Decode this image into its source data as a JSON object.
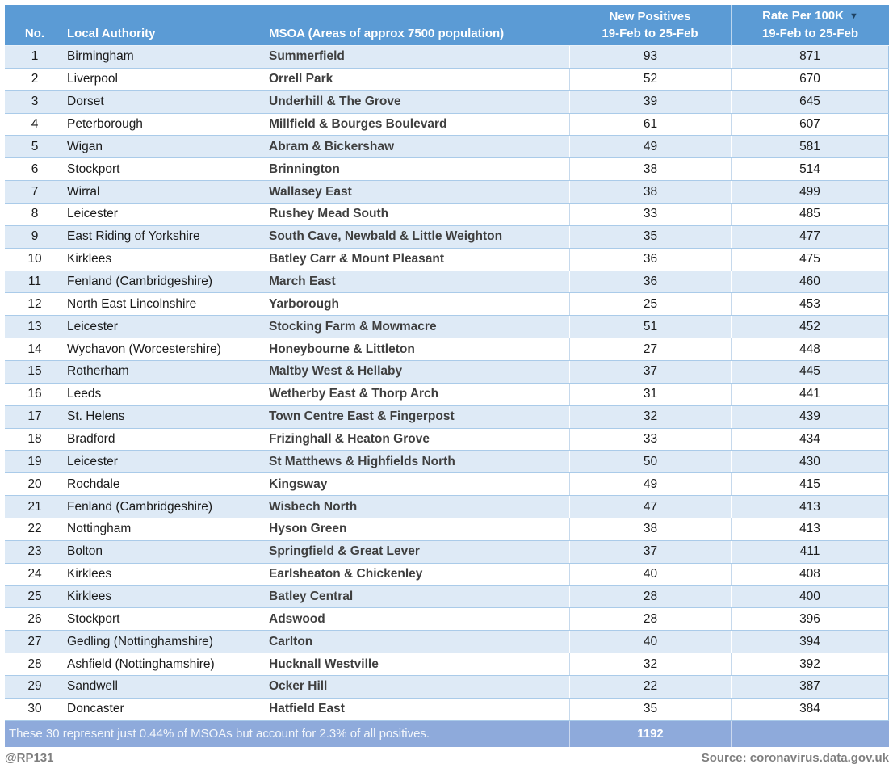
{
  "colors": {
    "header_bg": "#5b9bd5",
    "row_alt_bg": "#deeaf6",
    "row_plain_bg": "#ffffff",
    "grid_line": "#9cc2e5",
    "total_row_bg": "#8eaadb",
    "sort_arrow": "#1f4364",
    "caption_text": "#7f7f7f"
  },
  "chart_data": {
    "type": "table",
    "columns": [
      "No.",
      "Local Authority",
      "MSOA (Areas of approx 7500 population)",
      "New Positives 19-Feb to 25-Feb",
      "Rate Per 100K 19-Feb to 25-Feb"
    ],
    "header": {
      "no": "No.",
      "local_authority": "Local Authority",
      "msoa": "MSOA (Areas of approx 7500 population)",
      "positives_line1": "New Positives",
      "positives_line2": "19-Feb to 25-Feb",
      "rate_line1": "Rate Per 100K",
      "rate_line2": "19-Feb to 25-Feb",
      "sort_icon": "▼"
    },
    "rows": [
      {
        "no": "1",
        "la": "Birmingham",
        "msoa": "Summerfield",
        "positives": "93",
        "rate": "871"
      },
      {
        "no": "2",
        "la": "Liverpool",
        "msoa": "Orrell Park",
        "positives": "52",
        "rate": "670"
      },
      {
        "no": "3",
        "la": "Dorset",
        "msoa": "Underhill & The Grove",
        "positives": "39",
        "rate": "645"
      },
      {
        "no": "4",
        "la": "Peterborough",
        "msoa": "Millfield & Bourges Boulevard",
        "positives": "61",
        "rate": "607"
      },
      {
        "no": "5",
        "la": "Wigan",
        "msoa": "Abram & Bickershaw",
        "positives": "49",
        "rate": "581"
      },
      {
        "no": "6",
        "la": "Stockport",
        "msoa": "Brinnington",
        "positives": "38",
        "rate": "514"
      },
      {
        "no": "7",
        "la": "Wirral",
        "msoa": "Wallasey East",
        "positives": "38",
        "rate": "499"
      },
      {
        "no": "8",
        "la": "Leicester",
        "msoa": "Rushey Mead South",
        "positives": "33",
        "rate": "485"
      },
      {
        "no": "9",
        "la": "East Riding of Yorkshire",
        "msoa": "South Cave, Newbald & Little Weighton",
        "positives": "35",
        "rate": "477"
      },
      {
        "no": "10",
        "la": "Kirklees",
        "msoa": "Batley Carr & Mount Pleasant",
        "positives": "36",
        "rate": "475"
      },
      {
        "no": "11",
        "la": "Fenland (Cambridgeshire)",
        "msoa": "March East",
        "positives": "36",
        "rate": "460"
      },
      {
        "no": "12",
        "la": "North East Lincolnshire",
        "msoa": "Yarborough",
        "positives": "25",
        "rate": "453"
      },
      {
        "no": "13",
        "la": "Leicester",
        "msoa": "Stocking Farm & Mowmacre",
        "positives": "51",
        "rate": "452"
      },
      {
        "no": "14",
        "la": "Wychavon (Worcestershire)",
        "msoa": "Honeybourne & Littleton",
        "positives": "27",
        "rate": "448"
      },
      {
        "no": "15",
        "la": "Rotherham",
        "msoa": "Maltby West & Hellaby",
        "positives": "37",
        "rate": "445"
      },
      {
        "no": "16",
        "la": "Leeds",
        "msoa": "Wetherby East & Thorp Arch",
        "positives": "31",
        "rate": "441"
      },
      {
        "no": "17",
        "la": "St. Helens",
        "msoa": "Town Centre East & Fingerpost",
        "positives": "32",
        "rate": "439"
      },
      {
        "no": "18",
        "la": "Bradford",
        "msoa": "Frizinghall & Heaton Grove",
        "positives": "33",
        "rate": "434"
      },
      {
        "no": "19",
        "la": "Leicester",
        "msoa": "St Matthews & Highfields North",
        "positives": "50",
        "rate": "430"
      },
      {
        "no": "20",
        "la": "Rochdale",
        "msoa": "Kingsway",
        "positives": "49",
        "rate": "415"
      },
      {
        "no": "21",
        "la": "Fenland (Cambridgeshire)",
        "msoa": "Wisbech North",
        "positives": "47",
        "rate": "413"
      },
      {
        "no": "22",
        "la": "Nottingham",
        "msoa": "Hyson Green",
        "positives": "38",
        "rate": "413"
      },
      {
        "no": "23",
        "la": "Bolton",
        "msoa": "Springfield & Great Lever",
        "positives": "37",
        "rate": "411"
      },
      {
        "no": "24",
        "la": "Kirklees",
        "msoa": "Earlsheaton & Chickenley",
        "positives": "40",
        "rate": "408"
      },
      {
        "no": "25",
        "la": "Kirklees",
        "msoa": "Batley Central",
        "positives": "28",
        "rate": "400"
      },
      {
        "no": "26",
        "la": "Stockport",
        "msoa": "Adswood",
        "positives": "28",
        "rate": "396"
      },
      {
        "no": "27",
        "la": "Gedling (Nottinghamshire)",
        "msoa": "Carlton",
        "positives": "40",
        "rate": "394"
      },
      {
        "no": "28",
        "la": "Ashfield (Nottinghamshire)",
        "msoa": "Hucknall Westville",
        "positives": "32",
        "rate": "392"
      },
      {
        "no": "29",
        "la": "Sandwell",
        "msoa": "Ocker Hill",
        "positives": "22",
        "rate": "387"
      },
      {
        "no": "30",
        "la": "Doncaster",
        "msoa": "Hatfield East",
        "positives": "35",
        "rate": "384"
      }
    ],
    "footer": {
      "note": "These 30 represent just 0.44% of MSOAs but account for 2.3% of all positives.",
      "total_positives": "1192"
    }
  },
  "bottom": {
    "handle": "@RP131",
    "source": "Source: coronavirus.data.gov.uk"
  }
}
